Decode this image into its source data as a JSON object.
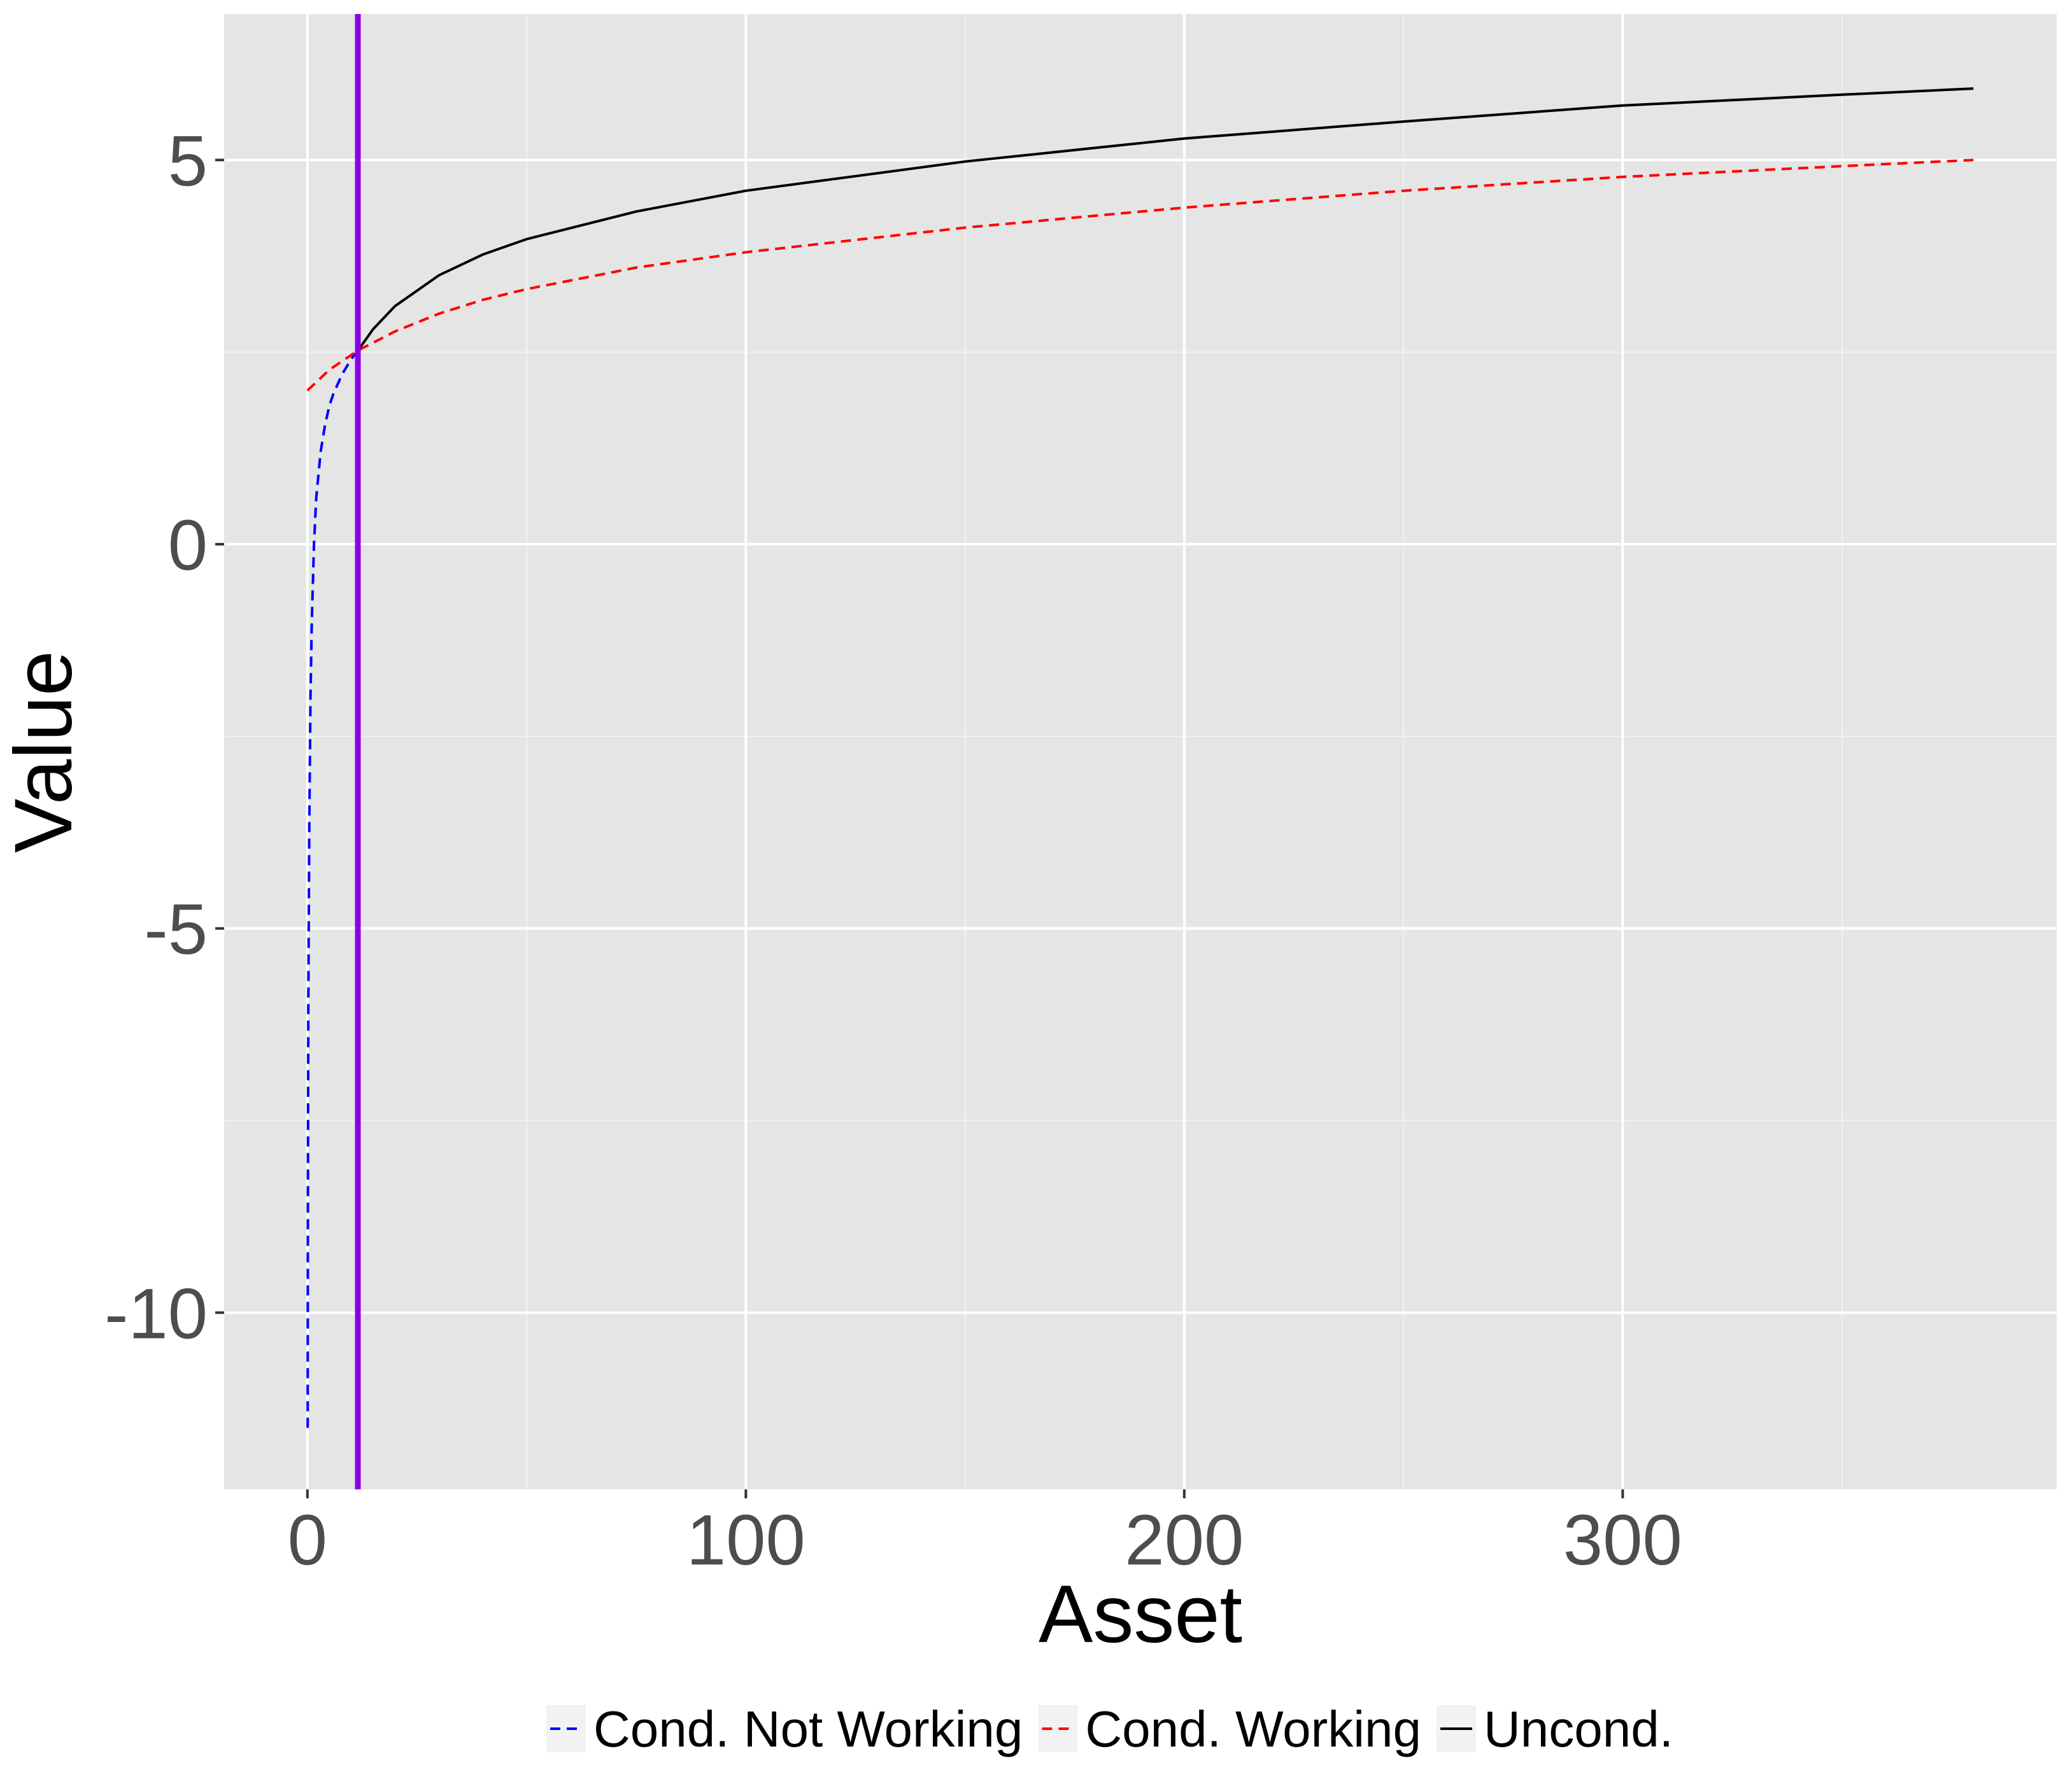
{
  "chart_data": {
    "type": "line",
    "xlabel": "Asset",
    "ylabel": "Value",
    "xlim": [
      -19,
      399
    ],
    "ylim": [
      -12.3,
      6.9
    ],
    "x_ticks": [
      0,
      100,
      200,
      300
    ],
    "x_tick_labels": [
      "0",
      "100",
      "200",
      "300"
    ],
    "y_ticks": [
      -10,
      -5,
      0,
      5
    ],
    "y_tick_labels": [
      "-10",
      "-5",
      "0",
      "5"
    ],
    "grid": true,
    "legend_position": "bottom",
    "vline": {
      "x": 11.5,
      "color": "#8B00E8"
    },
    "series": [
      {
        "name": "Cond. Not Working",
        "color": "#0000FF",
        "dash": "dashed",
        "points": [
          [
            0.05,
            -11.5
          ],
          [
            0.1,
            -8.8
          ],
          [
            0.2,
            -6.0
          ],
          [
            0.4,
            -3.8
          ],
          [
            0.7,
            -2.0
          ],
          [
            1,
            -1.0
          ],
          [
            1.5,
            0.0
          ],
          [
            2,
            0.6
          ],
          [
            3,
            1.2
          ],
          [
            4,
            1.55
          ],
          [
            5,
            1.8
          ],
          [
            6,
            1.97
          ],
          [
            8,
            2.22
          ],
          [
            10,
            2.41
          ],
          [
            11.5,
            2.52
          ]
        ]
      },
      {
        "name": "Cond. Working",
        "color": "#FF0000",
        "dash": "dashed",
        "points": [
          [
            0,
            2.0
          ],
          [
            5,
            2.27
          ],
          [
            11.5,
            2.52
          ],
          [
            20,
            2.77
          ],
          [
            30,
            3.0
          ],
          [
            40,
            3.18
          ],
          [
            50,
            3.32
          ],
          [
            75,
            3.6
          ],
          [
            100,
            3.8
          ],
          [
            150,
            4.12
          ],
          [
            200,
            4.38
          ],
          [
            250,
            4.6
          ],
          [
            300,
            4.78
          ],
          [
            350,
            4.92
          ],
          [
            380,
            5.0
          ]
        ]
      },
      {
        "name": "Uncond.",
        "color": "#000000",
        "dash": "solid",
        "points": [
          [
            11.5,
            2.52
          ],
          [
            15,
            2.8
          ],
          [
            20,
            3.1
          ],
          [
            30,
            3.5
          ],
          [
            40,
            3.77
          ],
          [
            50,
            3.97
          ],
          [
            75,
            4.33
          ],
          [
            100,
            4.6
          ],
          [
            150,
            4.98
          ],
          [
            200,
            5.28
          ],
          [
            250,
            5.5
          ],
          [
            300,
            5.71
          ],
          [
            350,
            5.85
          ],
          [
            380,
            5.93
          ]
        ]
      }
    ]
  }
}
